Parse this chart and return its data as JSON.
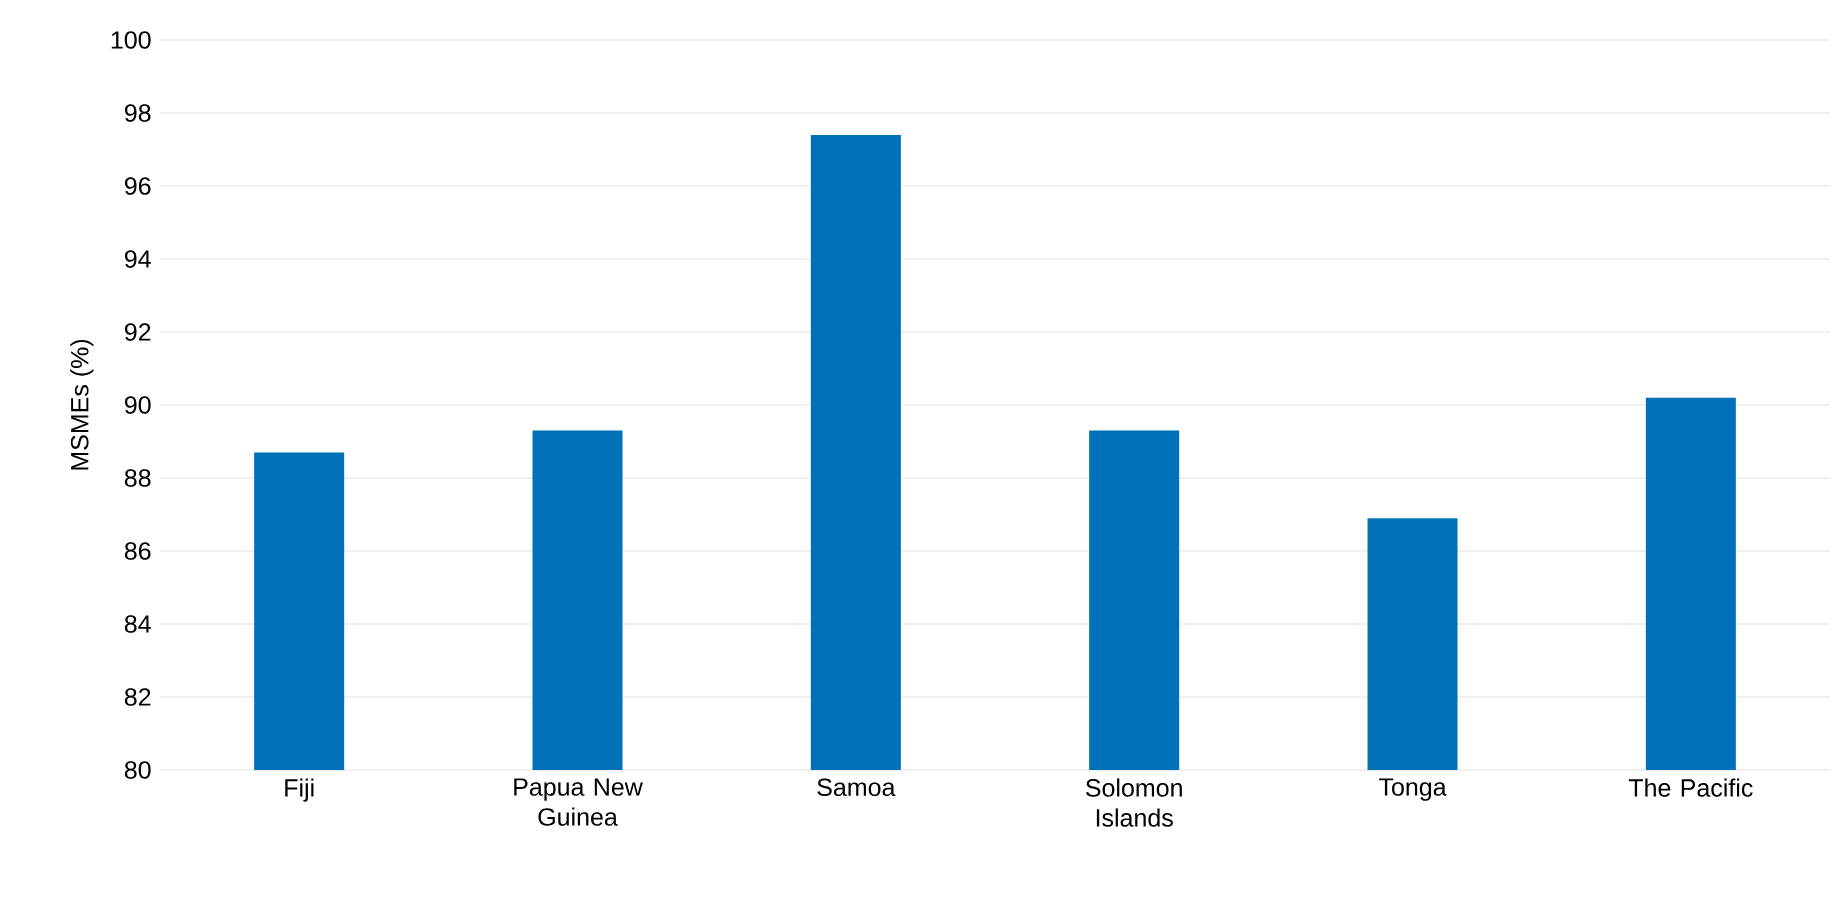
{
  "chart_data": {
    "type": "bar",
    "ylabel": "MSMEs (%)",
    "categories": [
      "Fiji",
      "Papua New Guinea",
      "Samoa",
      "Solomon Islands",
      "Tonga",
      "The Pacific"
    ],
    "values": [
      88.7,
      89.3,
      97.4,
      89.3,
      86.9,
      90.2
    ],
    "color": "#0070b8",
    "ylim": [
      80,
      100
    ],
    "yticks": [
      80,
      82,
      84,
      86,
      88,
      90,
      92,
      94,
      96,
      98,
      100
    ],
    "grid": "y"
  }
}
